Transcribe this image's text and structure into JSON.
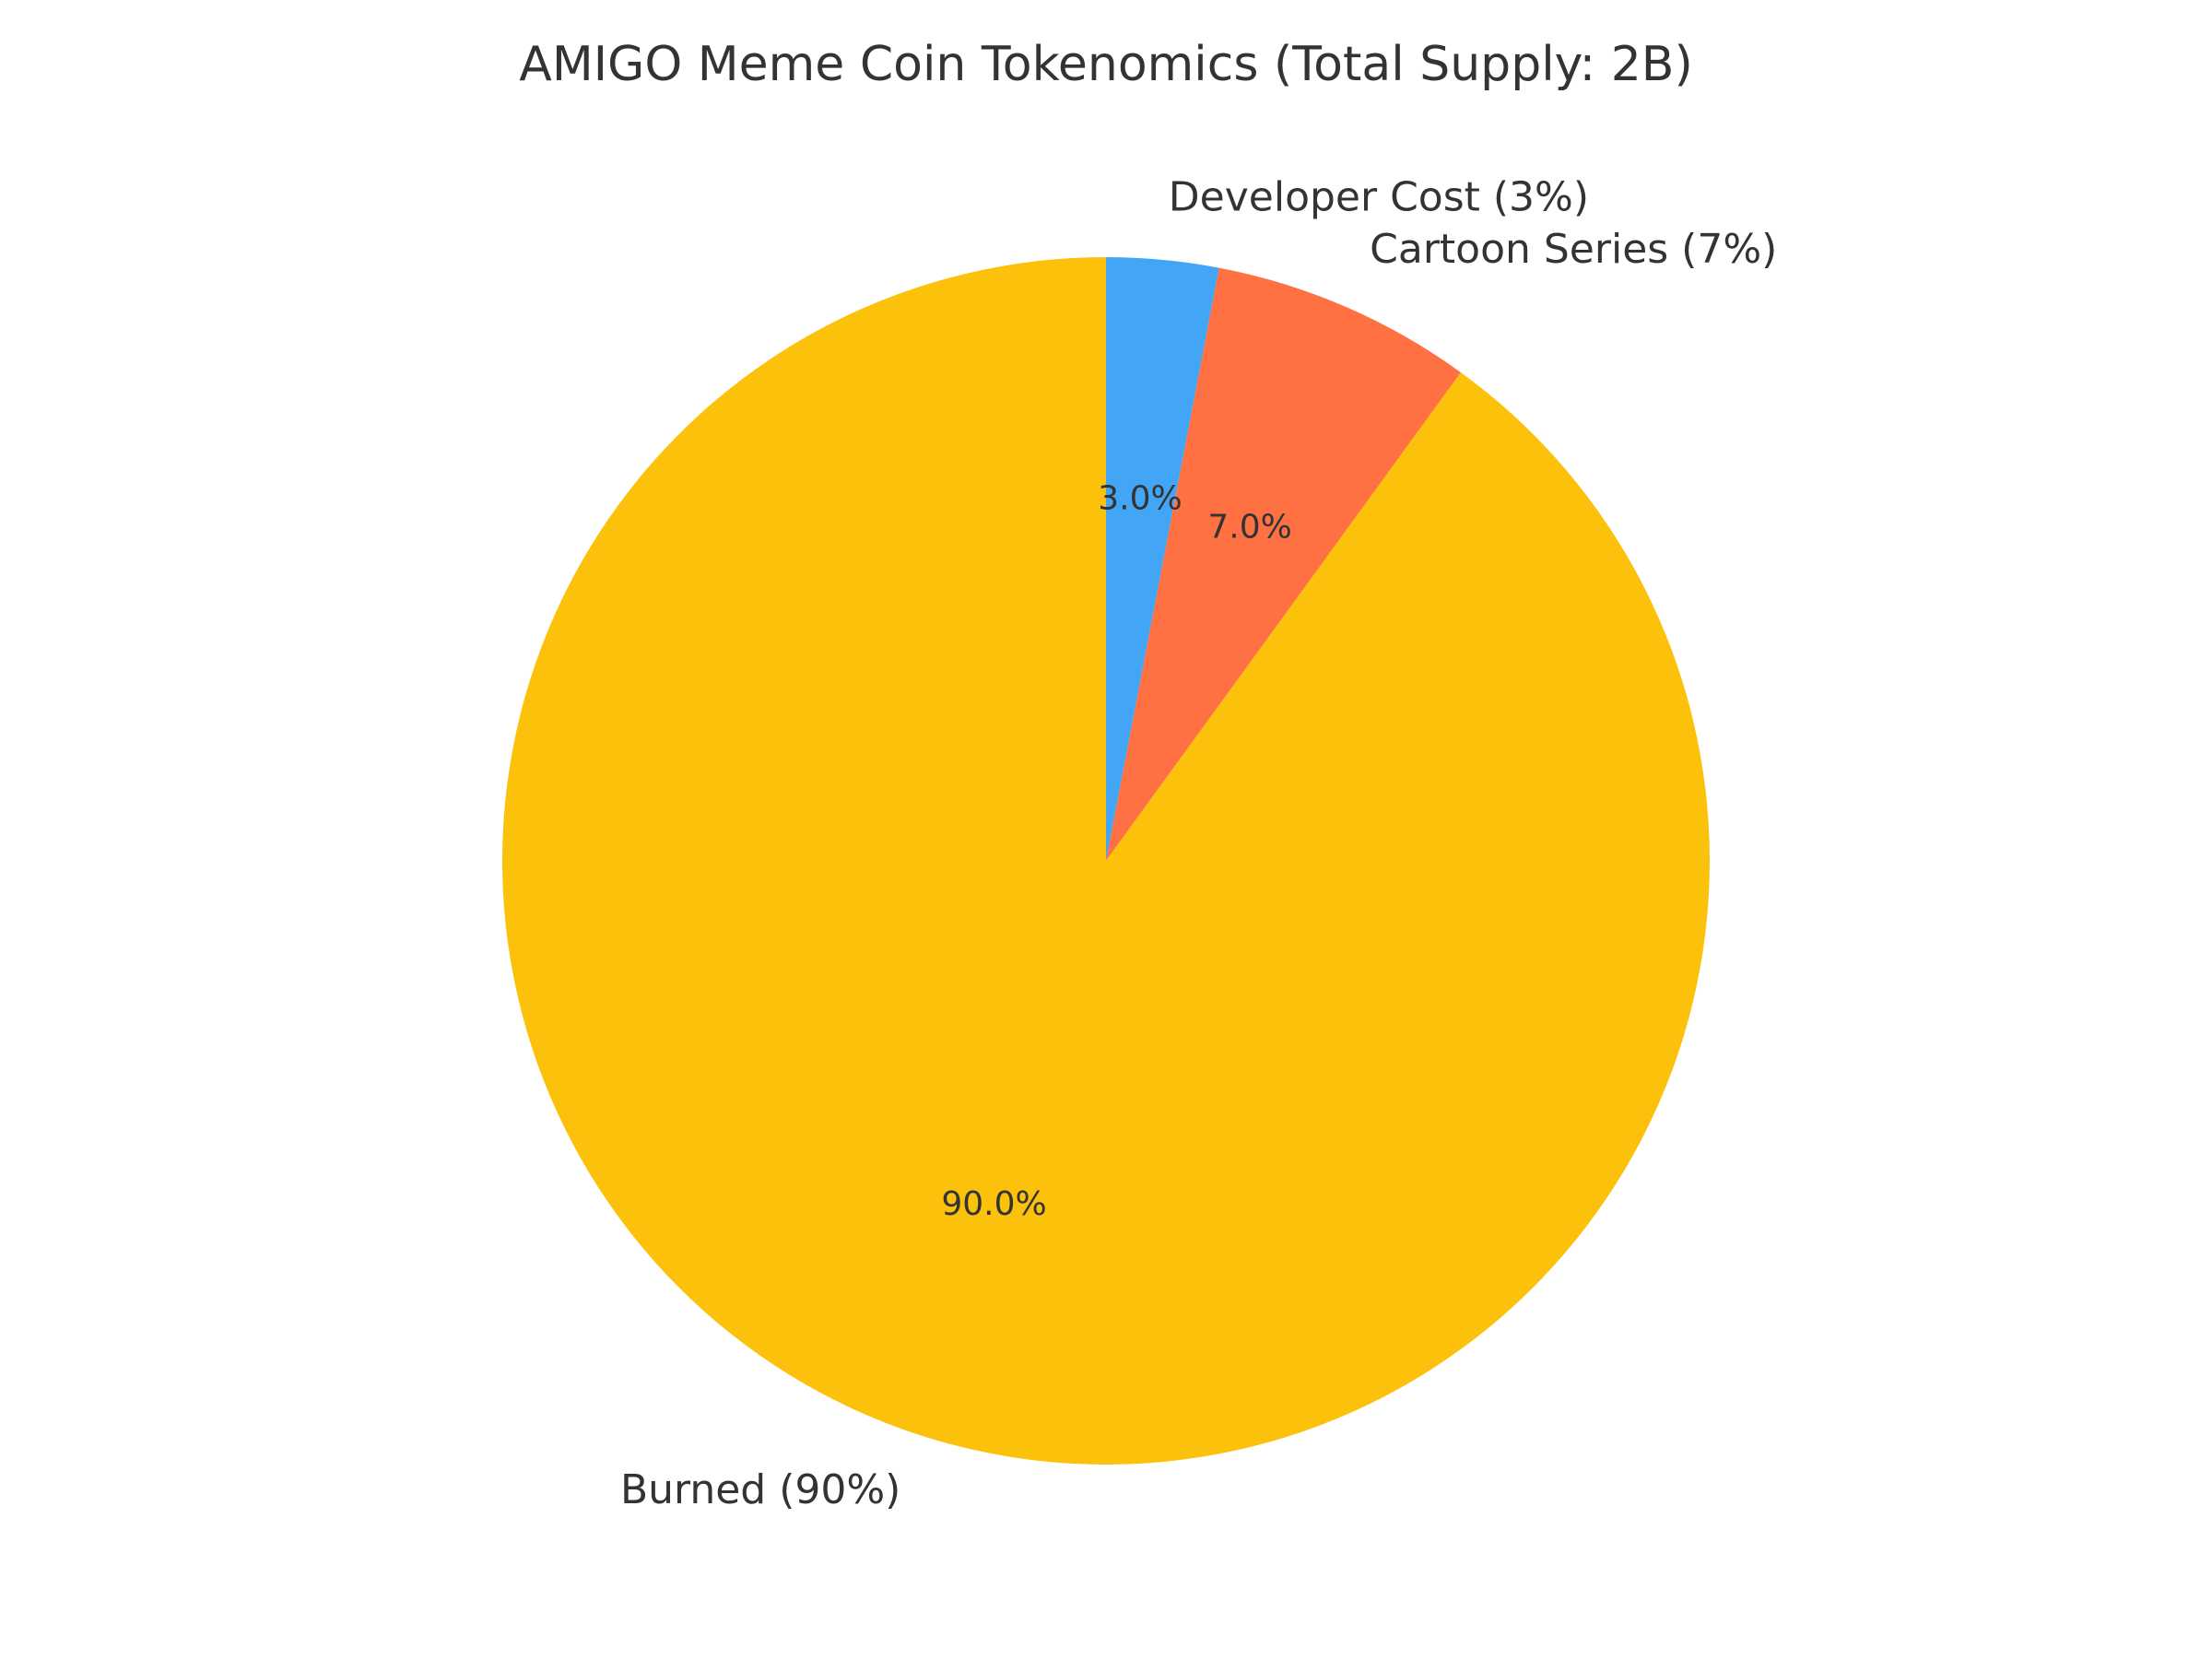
{
  "chart_data": {
    "type": "pie",
    "title": "AMIGO Meme Coin Tokenomics (Total Supply: 2B)",
    "categories": [
      "Developer Cost (3%)",
      "Cartoon Series (7%)",
      "Burned (90%)"
    ],
    "values": [
      3,
      7,
      90
    ],
    "value_labels": [
      "3.0%",
      "7.0%",
      "90.0%"
    ],
    "colors": [
      "#42a5f5",
      "#ff7043",
      "#fcc10a"
    ]
  }
}
